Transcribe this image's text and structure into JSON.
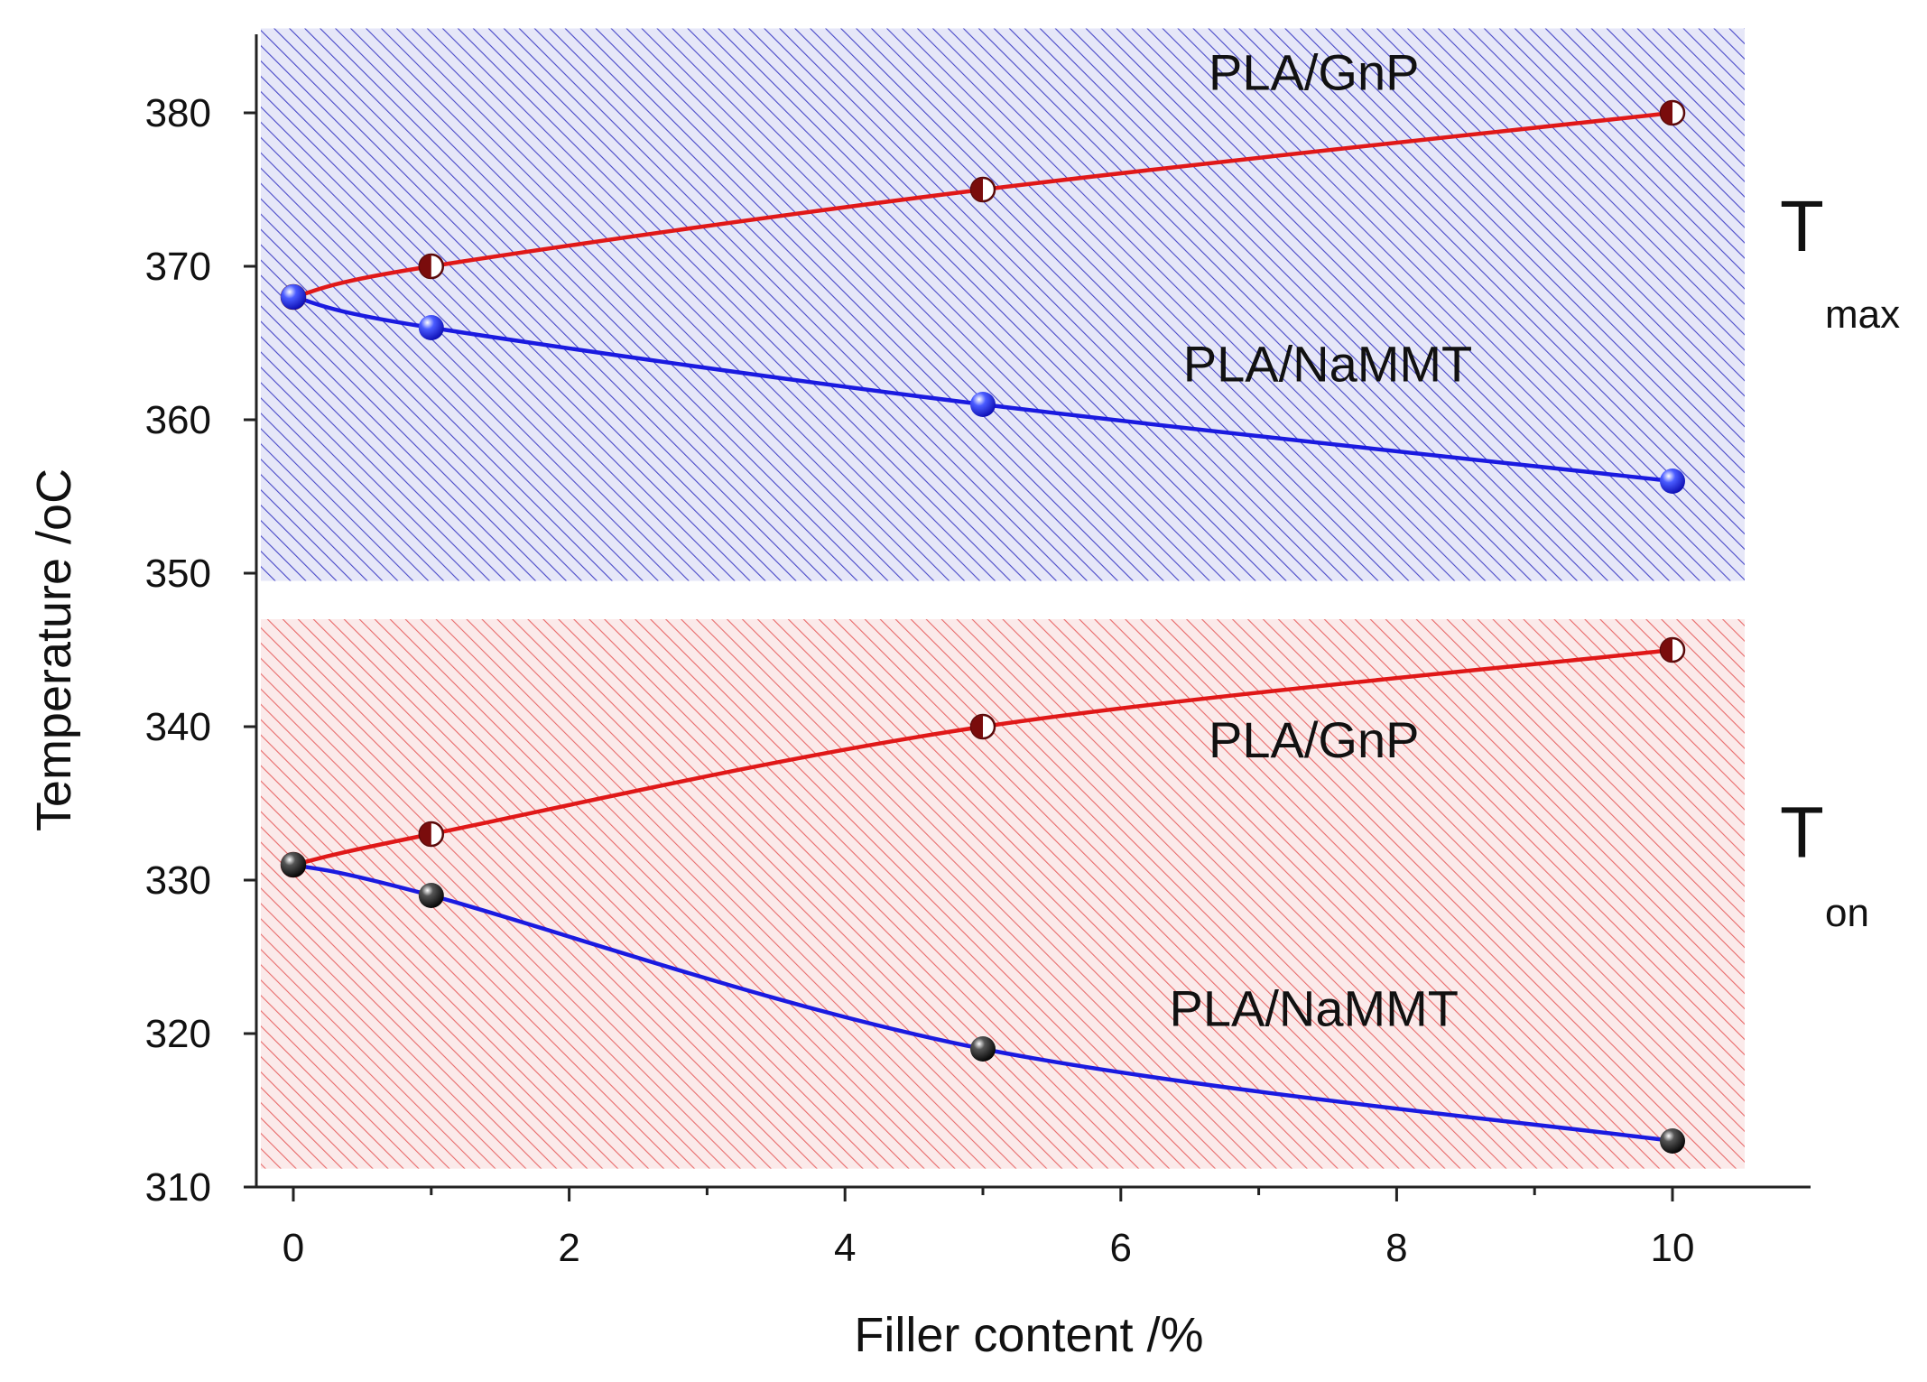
{
  "chart_data": {
    "type": "line",
    "xlabel": "Filler content /%",
    "ylabel": "Temperature /",
    "ylabel_unit": "oC",
    "xlim": [
      -0.3,
      10.5
    ],
    "ylim": [
      310,
      385
    ],
    "xticks": [
      0,
      2,
      4,
      6,
      8,
      10
    ],
    "yticks": [
      310,
      320,
      330,
      340,
      350,
      360,
      370,
      380
    ],
    "x": [
      0,
      1,
      5,
      10
    ],
    "regions": [
      {
        "name": "T",
        "sub": "max",
        "y_range": [
          349.5,
          385.5
        ],
        "color": "#3b3bd0",
        "series": [
          {
            "name": "PLA/GnP",
            "line_color": "#e01818",
            "marker": "half-dark-red",
            "values": [
              368,
              370,
              375,
              380
            ]
          },
          {
            "name": "PLA/NaMMT",
            "line_color": "#1a1ae0",
            "marker": "blue-sphere",
            "values": [
              368,
              366,
              361,
              356
            ]
          }
        ]
      },
      {
        "name": "T",
        "sub": "on",
        "y_range": [
          311.2,
          347
        ],
        "color": "#e84a4a",
        "series": [
          {
            "name": "PLA/GnP",
            "line_color": "#e01818",
            "marker": "half-dark-red",
            "values": [
              331,
              333,
              340,
              345
            ]
          },
          {
            "name": "PLA/NaMMT",
            "line_color": "#1a1ae0",
            "marker": "black-sphere",
            "values": [
              331,
              329,
              319,
              313
            ]
          }
        ]
      }
    ],
    "annotations": [
      {
        "text": "PLA/GnP",
        "x": 7.4,
        "y": 381.5
      },
      {
        "text": "PLA/NaMMT",
        "x": 7.5,
        "y": 362.5
      },
      {
        "text": "PLA/GnP",
        "x": 7.4,
        "y": 338
      },
      {
        "text": "PLA/NaMMT",
        "x": 7.4,
        "y": 320.5
      }
    ]
  }
}
